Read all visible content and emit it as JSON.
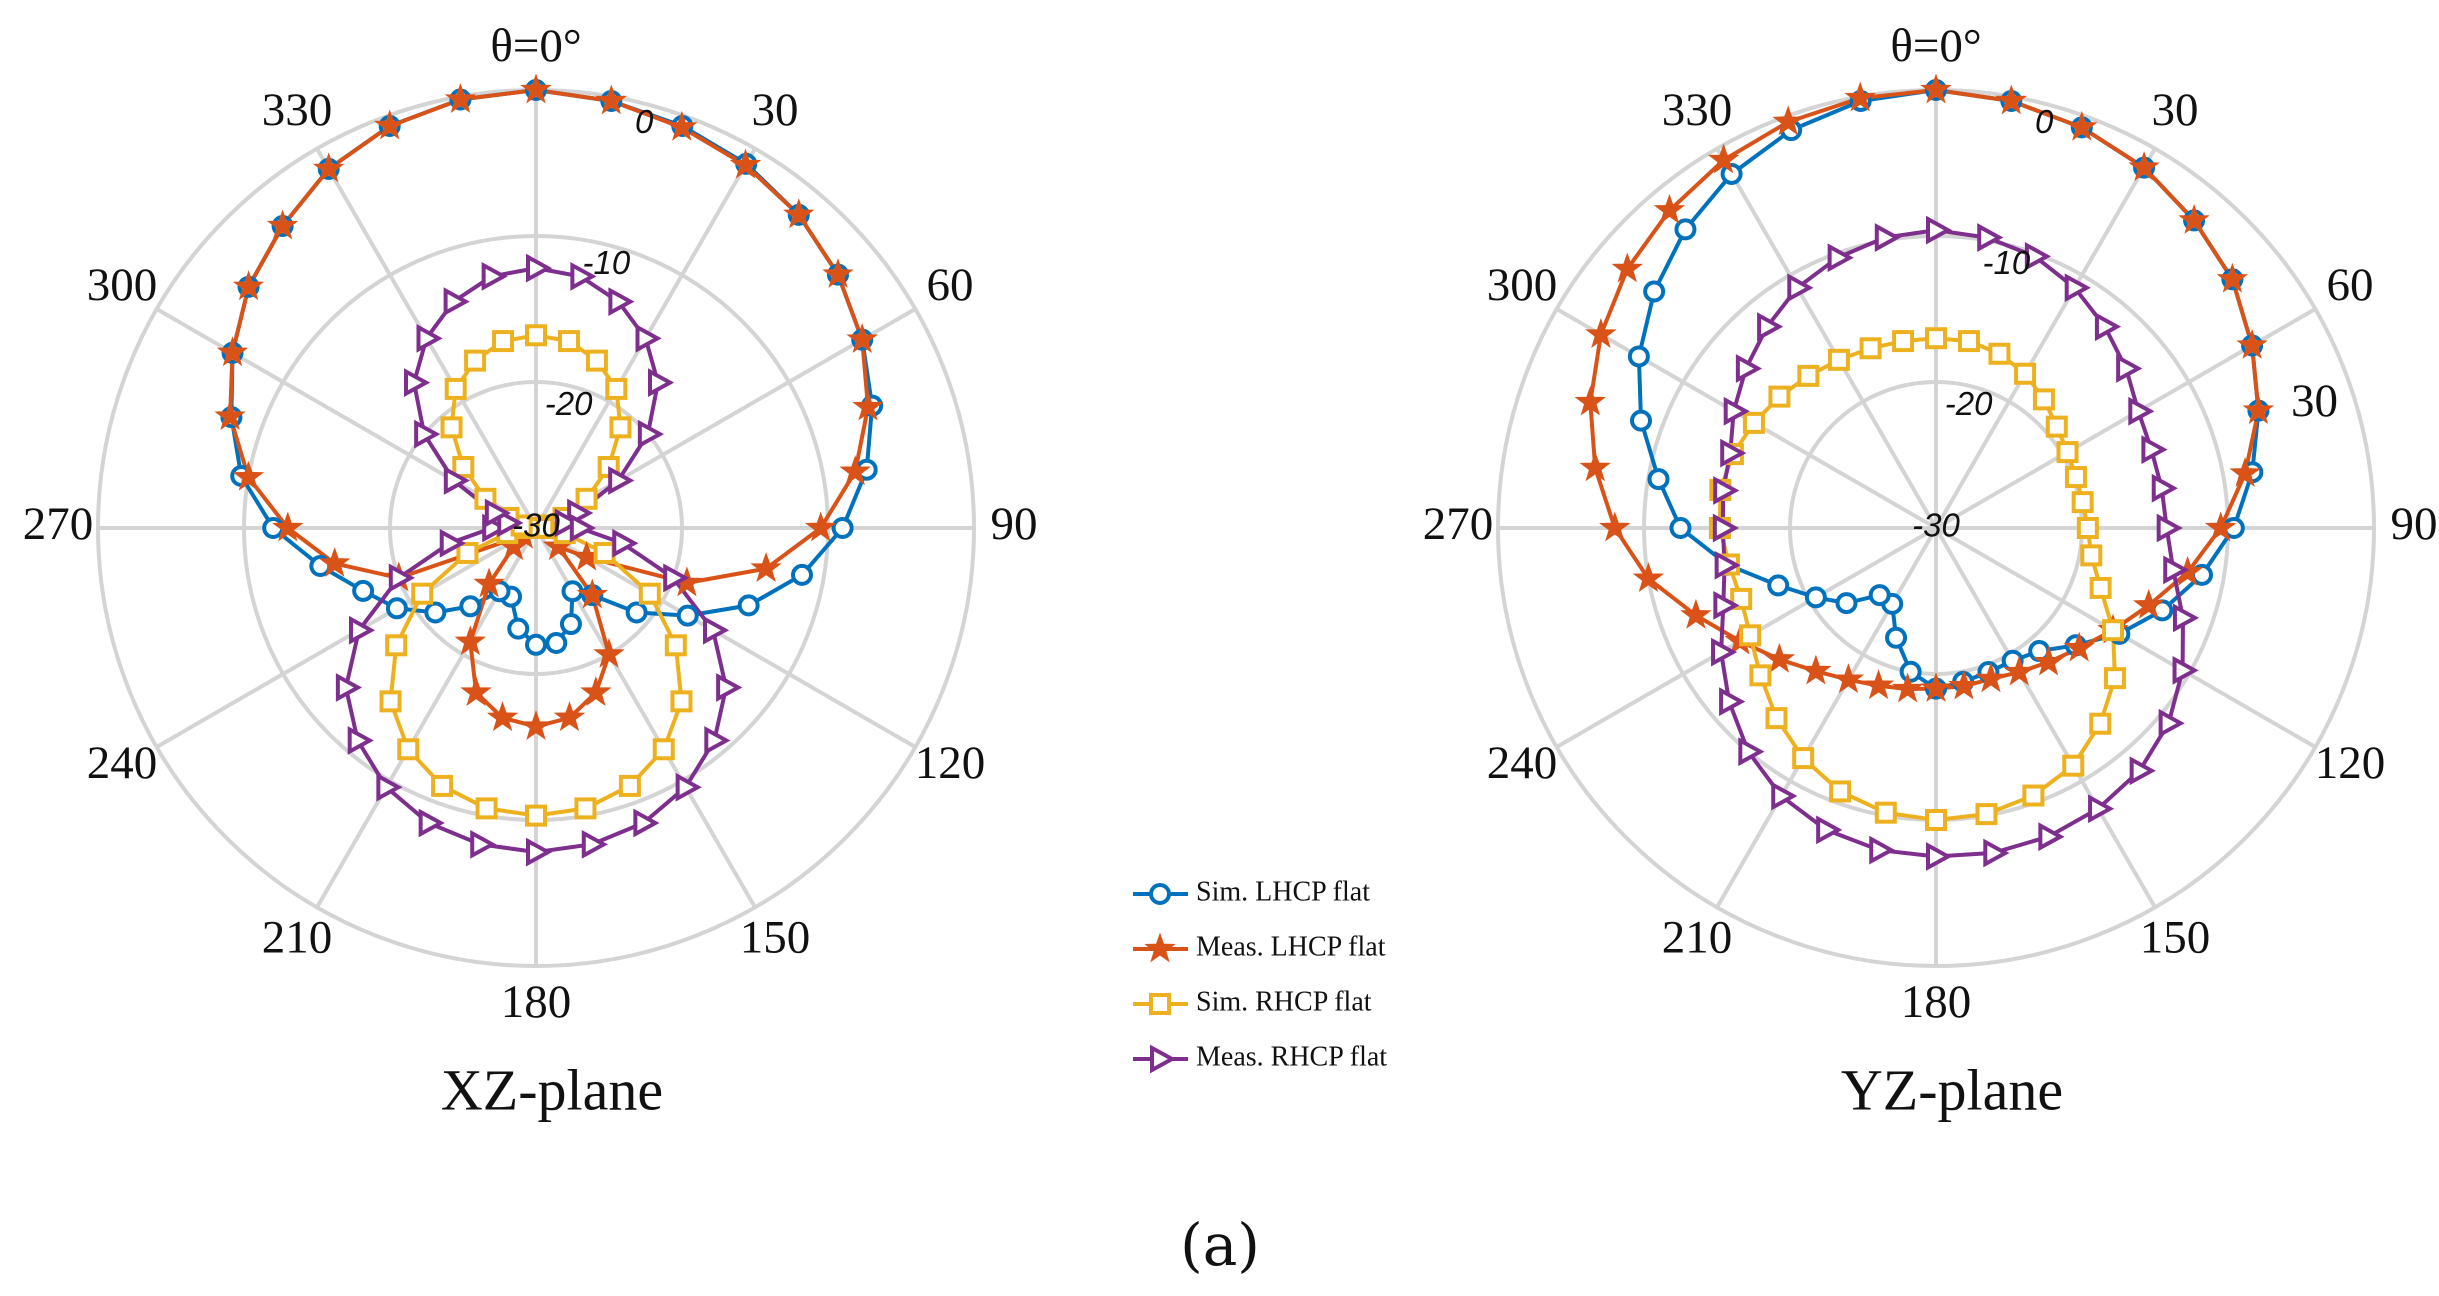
{
  "caption": "(a)",
  "chart_data": [
    {
      "type": "polar",
      "title": "XZ-plane",
      "theta": [
        0,
        10,
        20,
        30,
        40,
        50,
        60,
        70,
        80,
        90,
        100,
        110,
        120,
        130,
        140,
        150,
        160,
        170,
        180,
        190,
        200,
        210,
        220,
        230,
        240,
        250,
        260,
        270,
        280,
        290,
        300,
        310,
        320,
        330,
        340,
        350
      ],
      "thetaticks": [
        {
          "value": 0,
          "label": "θ=0°"
        },
        30,
        60,
        90,
        120,
        150,
        180,
        210,
        240,
        270,
        300,
        330
      ],
      "rlim": [
        -30,
        0
      ],
      "rticks": [
        0,
        -10,
        -20,
        -30
      ],
      "grid": true,
      "series": [
        {
          "name": "Sim. LHCP flat",
          "color": "#0072bd",
          "marker": "circle",
          "values": [
            0,
            -0.3,
            -0.7,
            -1.2,
            -2,
            -3,
            -4.2,
            -5.5,
            -7,
            -9,
            -11.5,
            -14.5,
            -18,
            -21,
            -24,
            -25,
            -23,
            -22,
            -22,
            -23,
            -25,
            -25,
            -23,
            -21,
            -19,
            -17.4,
            -15,
            -12,
            -9.5,
            -7.8,
            -6,
            -4.3,
            -3,
            -1.6,
            -0.7,
            -0.2
          ]
        },
        {
          "name": "Meas. LHCP flat",
          "color": "#d95319",
          "marker": "star",
          "values": [
            0,
            -0.3,
            -0.8,
            -1.3,
            -2,
            -3,
            -4.2,
            -5.8,
            -7.8,
            -10.5,
            -14,
            -19,
            -26,
            -28,
            -24,
            -20,
            -18,
            -16.8,
            -16.4,
            -16.8,
            -18,
            -21,
            -25,
            -28,
            -29,
            -20,
            -16,
            -13,
            -10,
            -7.7,
            -6,
            -4.3,
            -3,
            -1.6,
            -0.7,
            -0.2
          ]
        },
        {
          "name": "Sim. RHCP flat",
          "color": "#edb120",
          "marker": "square",
          "values": [
            -16.8,
            -17,
            -17.8,
            -19,
            -21,
            -23.5,
            -26,
            -28,
            -29,
            -29.5,
            -28,
            -25,
            -21,
            -17.5,
            -14.5,
            -12.5,
            -11.2,
            -10.5,
            -10.3,
            -10.5,
            -11.2,
            -12.5,
            -14.5,
            -17.5,
            -21,
            -25,
            -28,
            -29.5,
            -29,
            -28,
            -26,
            -23.5,
            -21,
            -19,
            -17.8,
            -17
          ]
        },
        {
          "name": "Meas. RHCP flat",
          "color": "#7e2f8e",
          "marker": "triangle",
          "values": [
            -12.2,
            -12.5,
            -13.5,
            -15,
            -17,
            -20,
            -23.5,
            -27,
            -28,
            -27,
            -24,
            -20,
            -16,
            -13,
            -11,
            -9.5,
            -8.5,
            -8,
            -7.8,
            -8,
            -8.5,
            -9.5,
            -11,
            -13,
            -16,
            -20,
            -24,
            -27,
            -28,
            -27,
            -23.5,
            -20,
            -17,
            -15,
            -13.5,
            -12.5
          ]
        }
      ]
    },
    {
      "type": "polar",
      "title": "YZ-plane",
      "annotation": "30",
      "theta": [
        0,
        10,
        20,
        30,
        40,
        50,
        60,
        70,
        80,
        90,
        100,
        110,
        120,
        130,
        140,
        150,
        160,
        170,
        180,
        190,
        200,
        210,
        220,
        230,
        240,
        250,
        260,
        270,
        280,
        290,
        300,
        310,
        320,
        330,
        340,
        350
      ],
      "thetaticks": [
        {
          "value": 0,
          "label": "θ=0°"
        },
        30,
        60,
        90,
        120,
        150,
        180,
        210,
        240,
        270,
        300,
        330
      ],
      "rlim": [
        -30,
        0
      ],
      "rticks": [
        0,
        -10,
        -20,
        -30
      ],
      "grid": true,
      "series": [
        {
          "color": "#0072bd",
          "marker": "circle",
          "values": [
            0,
            -0.3,
            -0.8,
            -1.5,
            -2.5,
            -3.5,
            -5,
            -6.5,
            -8,
            -9.6,
            -11.5,
            -13.5,
            -15.5,
            -17.5,
            -19,
            -19.5,
            -19.5,
            -19.3,
            -19,
            -20,
            -22,
            -24,
            -24,
            -22,
            -20.5,
            -18.5,
            -15.5,
            -12.5,
            -10.7,
            -8.5,
            -6.5,
            -4.8,
            -3.3,
            -2,
            -1,
            -0.3
          ]
        },
        {
          "color": "#d95319",
          "marker": "star",
          "values": [
            0,
            -0.3,
            -0.8,
            -1.5,
            -2.5,
            -3.5,
            -5,
            -6.5,
            -8.5,
            -10.5,
            -12.5,
            -14.5,
            -16,
            -17.2,
            -18,
            -18.6,
            -19,
            -19,
            -19,
            -18.8,
            -18.5,
            -18,
            -17.2,
            -16,
            -14.5,
            -12.5,
            -10,
            -8,
            -6.3,
            -4.8,
            -3.5,
            -2.4,
            -1.6,
            -0.9,
            -0.4,
            -0.1
          ]
        },
        {
          "color": "#edb120",
          "marker": "square",
          "values": [
            -17,
            -17,
            -17.3,
            -17.8,
            -18.5,
            -19.2,
            -19.6,
            -19.8,
            -19.8,
            -19.6,
            -19.2,
            -18,
            -16,
            -14,
            -12.5,
            -11.2,
            -10.5,
            -10.1,
            -10,
            -10.2,
            -10.8,
            -11.8,
            -13,
            -14.3,
            -15.3,
            -15.8,
            -15.6,
            -15.2,
            -15,
            -15.2,
            -15.6,
            -16,
            -16.4,
            -16.7,
            -16.9,
            -17
          ]
        },
        {
          "color": "#7e2f8e",
          "marker": "triangle",
          "values": [
            -9.6,
            -9.8,
            -10.2,
            -11,
            -12,
            -13,
            -14,
            -14.3,
            -14.3,
            -14.2,
            -13.5,
            -12,
            -10.5,
            -9.2,
            -8.3,
            -7.8,
            -7.5,
            -7.4,
            -7.5,
            -7.6,
            -8,
            -8.8,
            -10,
            -11.5,
            -13,
            -14.5,
            -15.3,
            -15.4,
            -15.2,
            -15,
            -14,
            -13,
            -12,
            -11,
            -10.3,
            -9.8
          ]
        }
      ]
    }
  ]
}
